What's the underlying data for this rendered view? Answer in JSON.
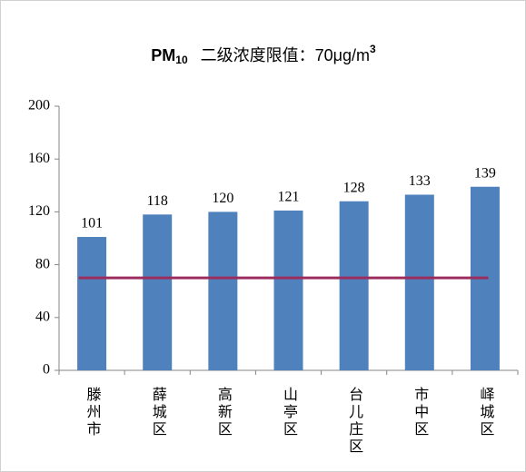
{
  "chart_data": {
    "type": "bar",
    "title": {
      "main": "PM",
      "sub": "10",
      "text": "二级浓度限值：70μg/m",
      "sup": "3"
    },
    "categories": [
      "滕州市",
      "薛城区",
      "高新区",
      "山亭区",
      "台儿庄区",
      "市中区",
      "峄城区"
    ],
    "values": [
      101,
      118,
      120,
      121,
      128,
      133,
      139
    ],
    "color": "#4f81bd",
    "reference_line": 70,
    "reference_color": "#9b2d5e",
    "ylim": [
      0,
      200
    ],
    "yticks": [
      0,
      40,
      80,
      120,
      160,
      200
    ],
    "grid": false
  }
}
